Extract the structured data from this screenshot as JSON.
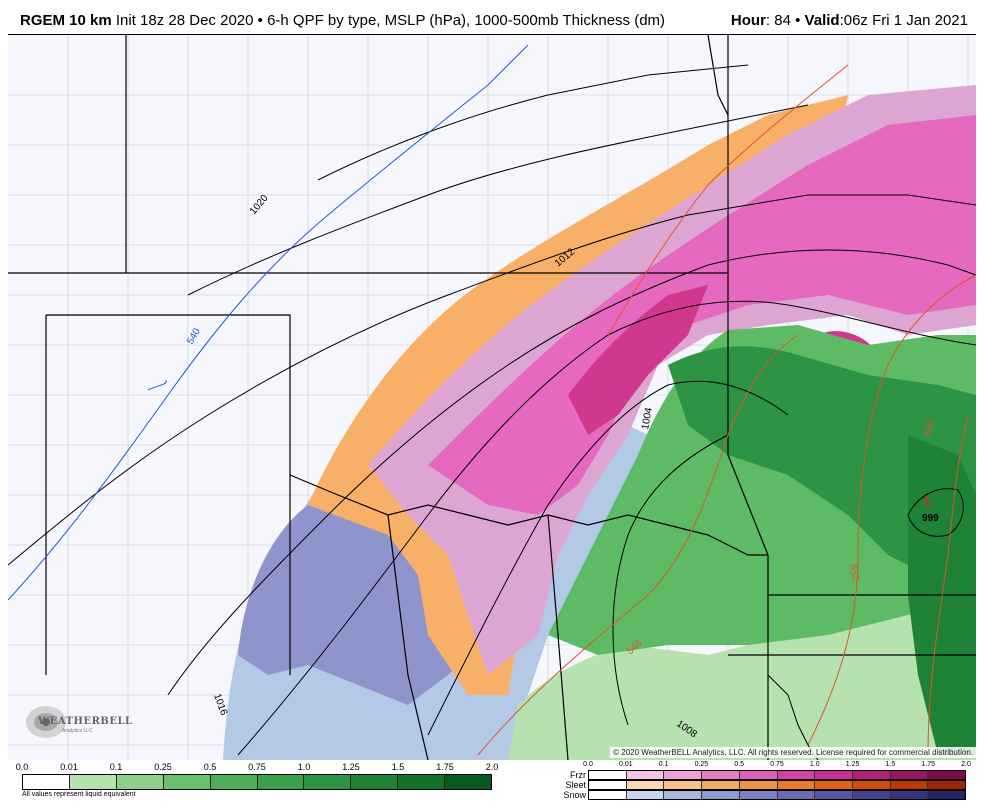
{
  "header": {
    "model": "RGEM 10 km",
    "init": "Init 18z 28 Dec 2020",
    "separator": "•",
    "product": "6-h QPF by type, MSLP (hPa), 1000-500mb Thickness (dm)",
    "hour_label": "Hour",
    "hour_value": ": 84",
    "valid_label": "Valid",
    "valid_value": ":06z Fri 1 Jan 2021"
  },
  "map": {
    "isobar_labels": [
      "1020",
      "1012",
      "1016",
      "1008",
      "1004",
      "999"
    ],
    "thickness_labels": [
      "540",
      "546",
      "552",
      "540"
    ],
    "low_symbol": "L",
    "colors": {
      "rain_light": "#b6e2b0",
      "rain_mid": "#5dbb66",
      "rain_dark": "#2c9444",
      "snow_light": "#b4c9e6",
      "snow_mid": "#8f94cc",
      "sleet": "#f8b068",
      "frzr_light": "#dda6d2",
      "frzr_mid": "#e469bf",
      "frzr_dark": "#d0378f",
      "isobar": "#000000",
      "thickness_cold": "#1f5ad0",
      "thickness_warm": "#e0542c"
    }
  },
  "branding": {
    "logo_text": "WEATHERBELL",
    "logo_sub": "Analytics LLC",
    "copyright": "© 2020 WeatherBELL Analytics, LLC. All rights reserved. License required for commercial distribution."
  },
  "legend_rain": {
    "ticks": [
      "0.0",
      "0.01",
      "0.1",
      "0.25",
      "0.5",
      "0.75",
      "1.0",
      "1.25",
      "1.5",
      "1.75",
      "2.0"
    ],
    "colors": [
      "#ffffff",
      "#b6e2b0",
      "#8fcf87",
      "#6cbf6b",
      "#4fae57",
      "#3aa04a",
      "#2c9444",
      "#1f8337",
      "#13712c",
      "#0a5a20"
    ],
    "note": "All values represent liquid equivalent"
  },
  "legend_mix": {
    "ticks": [
      "0.0",
      "0.01",
      "0.1",
      "0.25",
      "0.5",
      "0.75",
      "1.0",
      "1.25",
      "1.5",
      "1.75",
      "2.0"
    ],
    "rows": [
      {
        "label": "Frzr",
        "colors": [
          "#ffffff",
          "#f3c4e4",
          "#eca0d6",
          "#e47ec7",
          "#dc5fba",
          "#d442a8",
          "#c92e93",
          "#b51f7c",
          "#9a1566",
          "#7a0c4e"
        ]
      },
      {
        "label": "Sleet",
        "colors": [
          "#ffffff",
          "#fcd9b0",
          "#f8c28a",
          "#f4aa6a",
          "#f0924c",
          "#ea7a34",
          "#e06220",
          "#d34b14",
          "#bd370c",
          "#9e2606"
        ]
      },
      {
        "label": "Snow",
        "colors": [
          "#ffffff",
          "#c7d4ee",
          "#aab7e0",
          "#9299d0",
          "#7f82c2",
          "#6d6ab2",
          "#5b55a2",
          "#4a4290",
          "#3a317c",
          "#2b2266"
        ]
      }
    ]
  }
}
